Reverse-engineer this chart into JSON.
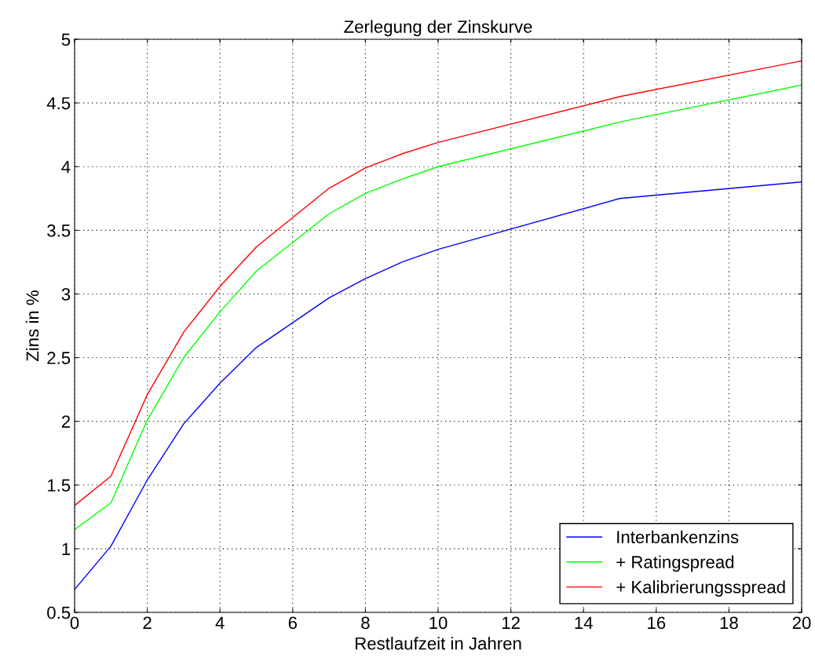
{
  "chart_data": {
    "type": "line",
    "title": "Zerlegung der Zinskurve",
    "xlabel": "Restlaufzeit in Jahren",
    "ylabel": "Zins in %",
    "x": [
      0,
      1,
      2,
      3,
      4,
      5,
      7,
      8,
      9,
      10,
      15,
      20
    ],
    "series": [
      {
        "name": "Interbankenzins",
        "color": "#0000ff",
        "values": [
          0.68,
          1.02,
          1.54,
          1.98,
          2.3,
          2.58,
          2.97,
          3.12,
          3.25,
          3.35,
          3.75,
          3.88
        ]
      },
      {
        "name": "+ Ratingspread",
        "color": "#00ff00",
        "values": [
          1.15,
          1.36,
          2.01,
          2.5,
          2.86,
          3.18,
          3.63,
          3.79,
          3.9,
          4.0,
          4.35,
          4.64
        ]
      },
      {
        "name": "+ Kalibrierungsspread",
        "color": "#ff0000",
        "values": [
          1.34,
          1.57,
          2.21,
          2.7,
          3.06,
          3.37,
          3.83,
          3.99,
          4.1,
          4.19,
          4.55,
          4.83
        ]
      }
    ],
    "xlim": [
      0,
      20
    ],
    "xticks": [
      0,
      2,
      4,
      6,
      8,
      10,
      12,
      14,
      16,
      18,
      20
    ],
    "ylim": [
      0.5,
      5
    ],
    "yticks": [
      0.5,
      1,
      1.5,
      2,
      2.5,
      3,
      3.5,
      4,
      4.5,
      5
    ],
    "grid": true,
    "legend": "lower right",
    "line_style": "solid",
    "marker": "none"
  }
}
